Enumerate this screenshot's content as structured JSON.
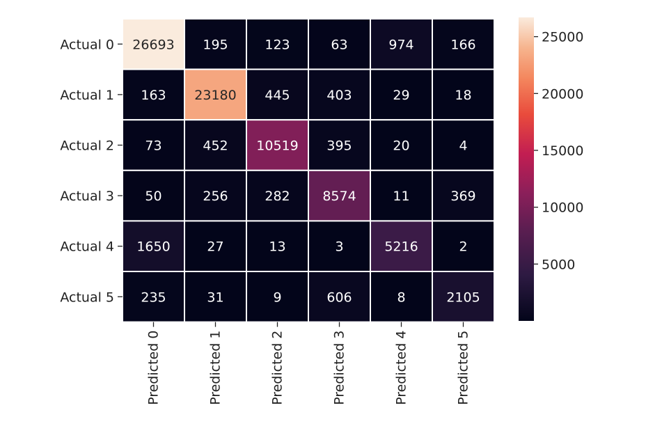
{
  "chart_data": {
    "type": "heatmap",
    "title": "",
    "xlabel": "",
    "ylabel": "",
    "row_labels": [
      "Actual 0",
      "Actual 1",
      "Actual 2",
      "Actual 3",
      "Actual 4",
      "Actual 5"
    ],
    "col_labels": [
      "Predicted 0",
      "Predicted 1",
      "Predicted 2",
      "Predicted 3",
      "Predicted 4",
      "Predicted 5"
    ],
    "values": [
      [
        26693,
        195,
        123,
        63,
        974,
        166
      ],
      [
        163,
        23180,
        445,
        403,
        29,
        18
      ],
      [
        73,
        452,
        10519,
        395,
        20,
        4
      ],
      [
        50,
        256,
        282,
        8574,
        11,
        369
      ],
      [
        1650,
        27,
        13,
        3,
        5216,
        2
      ],
      [
        235,
        31,
        9,
        606,
        8,
        2105
      ]
    ],
    "colormap": "rocket",
    "vmin": 2,
    "vmax": 26693,
    "colorbar_ticks": [
      5000,
      10000,
      15000,
      20000,
      25000
    ],
    "annotations": true,
    "cell_separator_color": "#ffffff"
  }
}
